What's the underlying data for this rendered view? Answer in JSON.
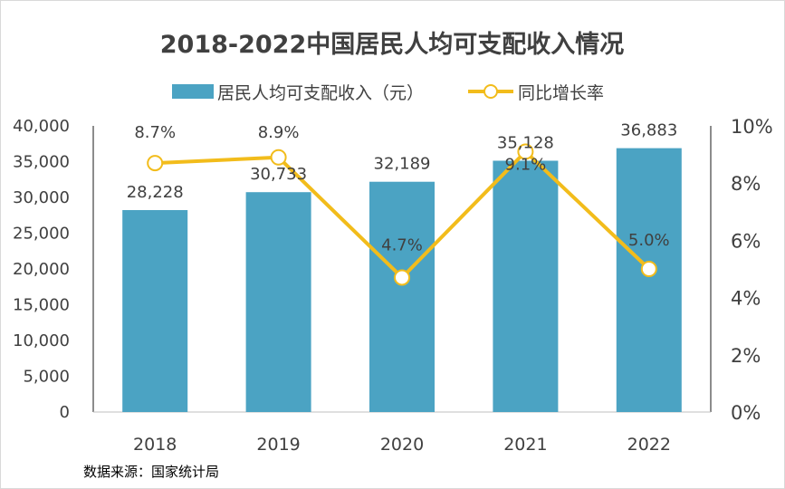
{
  "chart_data": {
    "type": "bar+line",
    "title": "2018-2022中国居民人均可支配收入情况",
    "categories": [
      "2018",
      "2019",
      "2020",
      "2021",
      "2022"
    ],
    "series": [
      {
        "name": "居民人均可支配收入（元）",
        "type": "bar",
        "axis": "left",
        "values": [
          28228,
          30733,
          32189,
          35128,
          36883
        ],
        "labels": [
          "28,228",
          "30,733",
          "32,189",
          "35,128",
          "36,883"
        ],
        "color": "#4BA3C3"
      },
      {
        "name": "同比增长率",
        "type": "line",
        "axis": "right",
        "values": [
          8.7,
          8.9,
          4.7,
          9.1,
          5.0
        ],
        "labels": [
          "8.7%",
          "8.9%",
          "4.7%",
          "9.1%",
          "5.0%"
        ],
        "color": "#F2BC1B"
      }
    ],
    "y_left": {
      "range": [
        0,
        40000
      ],
      "ticks": [
        "0",
        "5,000",
        "10,000",
        "15,000",
        "20,000",
        "25,000",
        "30,000",
        "35,000",
        "40,000"
      ]
    },
    "y_right": {
      "range": [
        0,
        10
      ],
      "ticks": [
        "0%",
        "2%",
        "4%",
        "6%",
        "8%",
        "10%"
      ]
    },
    "legend": "top-center",
    "grid": false,
    "source": "数据来源：国家统计局"
  }
}
